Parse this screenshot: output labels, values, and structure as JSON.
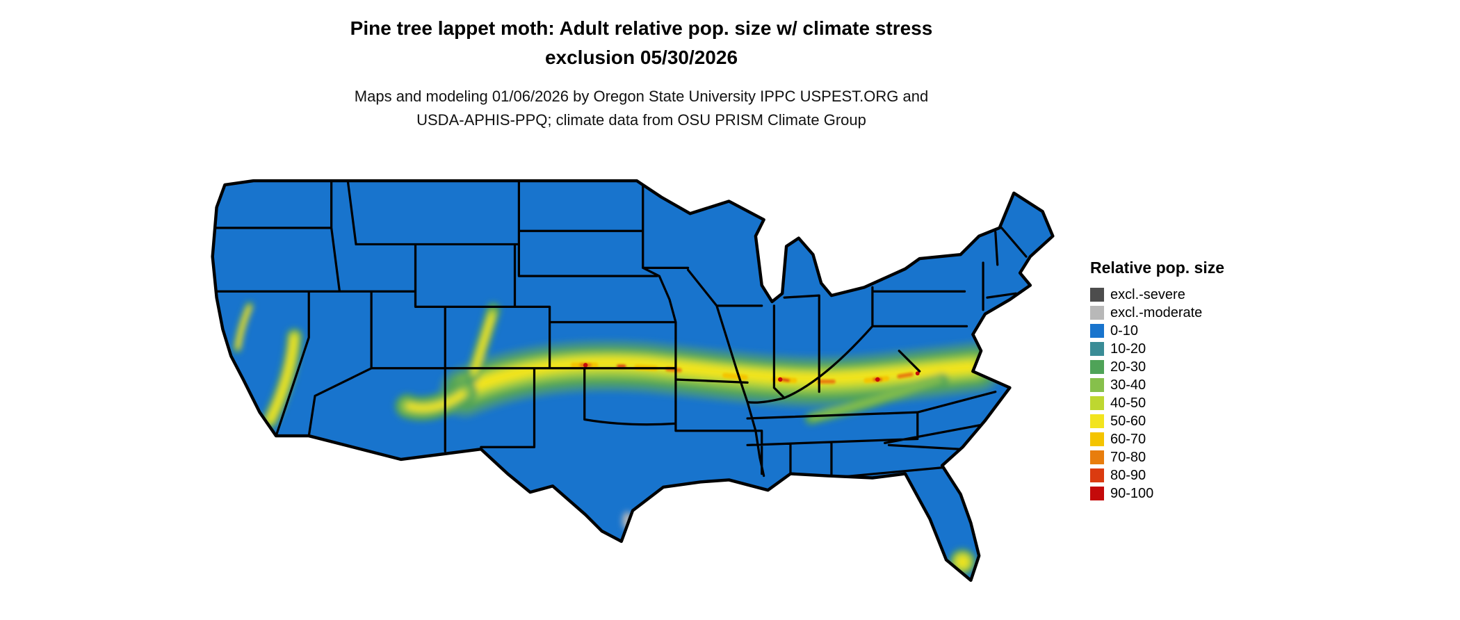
{
  "header": {
    "title_line1": "Pine tree lappet moth: Adult relative pop. size w/ climate stress",
    "title_line2": "exclusion 05/30/2026",
    "subtitle_line1": "Maps and modeling 01/06/2026 by Oregon State University IPPC USPEST.ORG and",
    "subtitle_line2": "USDA-APHIS-PPQ; climate data from OSU PRISM Climate Group"
  },
  "legend": {
    "title": "Relative pop. size",
    "items": [
      {
        "label": "excl.-severe",
        "color": "#4D4D4D"
      },
      {
        "label": "excl.-moderate",
        "color": "#B8B8B8"
      },
      {
        "label": "0-10",
        "color": "#1874CD"
      },
      {
        "label": "10-20",
        "color": "#3A8C96"
      },
      {
        "label": "20-30",
        "color": "#4FA358"
      },
      {
        "label": "30-40",
        "color": "#86C04B"
      },
      {
        "label": "40-50",
        "color": "#BED730"
      },
      {
        "label": "50-60",
        "color": "#F2E41E"
      },
      {
        "label": "60-70",
        "color": "#F4C400"
      },
      {
        "label": "70-80",
        "color": "#E87D0D"
      },
      {
        "label": "80-90",
        "color": "#DB3B10"
      },
      {
        "label": "90-100",
        "color": "#C40A0A"
      }
    ]
  },
  "map": {
    "base_category": "0-10",
    "base_fill": "#1874CD",
    "outline_color": "#000000",
    "excluded_moderate_fill": "#B8B8B8",
    "date_shown": "05/30/2026"
  }
}
